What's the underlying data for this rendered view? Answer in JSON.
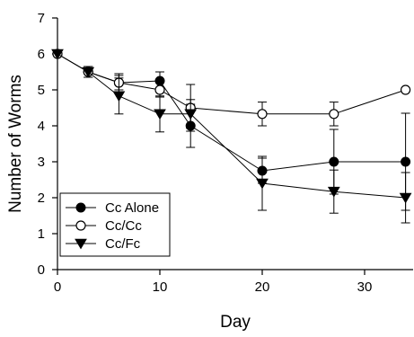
{
  "chart_data": {
    "type": "line",
    "title": "",
    "xlabel": "Day",
    "ylabel": "Number of Worms",
    "xlim": [
      0,
      35
    ],
    "ylim": [
      0,
      7
    ],
    "xticks": [
      0,
      10,
      20,
      30
    ],
    "yticks": [
      0,
      1,
      2,
      3,
      4,
      5,
      6,
      7
    ],
    "grid": false,
    "legend_position": "bottom-left",
    "series": [
      {
        "name": "Cc Alone",
        "marker": "filled-circle",
        "x": [
          0,
          3,
          6,
          10,
          13,
          20,
          27,
          34
        ],
        "y": [
          6,
          5.5,
          5.2,
          5.25,
          4.0,
          2.75,
          3.0,
          3.0
        ],
        "err": [
          0,
          0.15,
          0.25,
          0.25,
          0.6,
          0.35,
          0.9,
          1.35
        ]
      },
      {
        "name": "Cc/Cc",
        "marker": "open-circle",
        "x": [
          0,
          3,
          6,
          10,
          13,
          20,
          27,
          34
        ],
        "y": [
          6,
          5.5,
          5.2,
          5.0,
          4.5,
          4.33,
          4.33,
          5.0
        ],
        "err": [
          0,
          0.15,
          0.2,
          0.2,
          0.65,
          0.33,
          0.33,
          0
        ]
      },
      {
        "name": "Cc/Fc",
        "marker": "filled-triangle-down",
        "x": [
          0,
          3,
          6,
          10,
          13,
          20,
          27,
          34
        ],
        "y": [
          6,
          5.5,
          4.83,
          4.33,
          4.33,
          2.4,
          2.17,
          2.0
        ],
        "err": [
          0,
          0.15,
          0.5,
          0.5,
          0.4,
          0.75,
          0.6,
          0.7
        ]
      }
    ]
  }
}
